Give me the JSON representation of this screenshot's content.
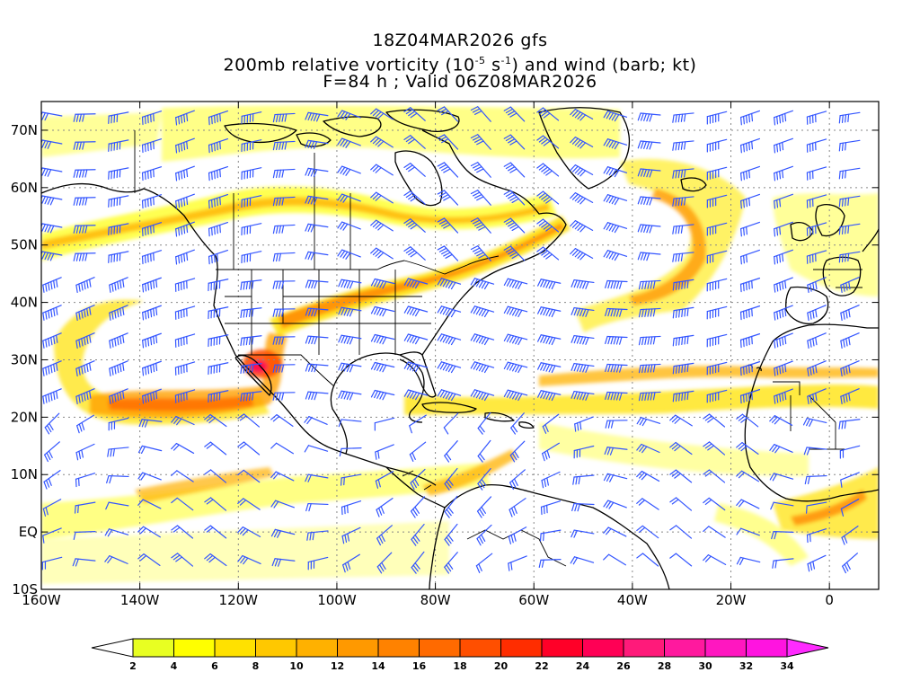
{
  "header": {
    "line1": "18Z04MAR2026 gfs",
    "line2_a": "200mb relative vorticity (10",
    "line2_sup1": "-5",
    "line2_b": " s",
    "line2_sup2": "-1",
    "line2_c": ") and wind (barb; kt)",
    "line3": "F=84 h ; Valid 06Z08MAR2026"
  },
  "axes": {
    "lat_labels": [
      "70N",
      "60N",
      "50N",
      "40N",
      "30N",
      "20N",
      "10N",
      "EQ",
      "10S"
    ],
    "lat_values": [
      70,
      60,
      50,
      40,
      30,
      20,
      10,
      0,
      -10
    ],
    "lon_labels": [
      "160W",
      "140W",
      "120W",
      "100W",
      "80W",
      "60W",
      "40W",
      "20W",
      "0"
    ],
    "lon_values": [
      -160,
      -140,
      -120,
      -100,
      -80,
      -60,
      -40,
      -20,
      0
    ],
    "lon_range": [
      -160,
      10
    ],
    "lat_range": [
      -10,
      75
    ]
  },
  "colorbar": {
    "labels": [
      "2",
      "4",
      "6",
      "8",
      "10",
      "12",
      "14",
      "16",
      "18",
      "20",
      "22",
      "24",
      "26",
      "28",
      "30",
      "32",
      "34"
    ],
    "colors": [
      "#e8ff22",
      "#ffff00",
      "#ffe100",
      "#ffc800",
      "#ffb100",
      "#ff9900",
      "#ff8200",
      "#ff6a00",
      "#ff4f00",
      "#ff2d00",
      "#ff0028",
      "#ff0055",
      "#ff1a7a",
      "#ff199e",
      "#ff17c0",
      "#ff14e0"
    ],
    "under_color": "#ffffff",
    "over_color": "#ff2bff"
  },
  "colors": {
    "barb": "#3355ff",
    "coast": "#000000",
    "grid": "#888888"
  }
}
